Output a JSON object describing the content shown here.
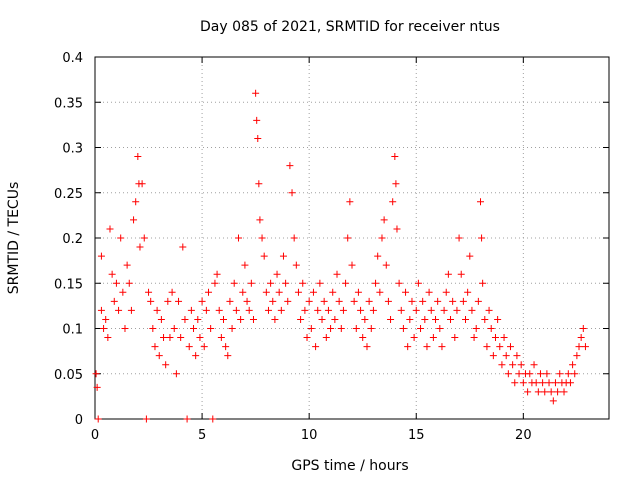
{
  "chart_data": {
    "type": "scatter",
    "title": "Day 085 of 2021, SRMTID for receiver ntus",
    "xlabel": "GPS time / hours",
    "ylabel": "SRMTID / TECUs",
    "xlim": [
      0,
      24
    ],
    "ylim": [
      0,
      0.4
    ],
    "grid": true,
    "marker": "+",
    "color": "#ff0000",
    "x_ticks": [
      0,
      5,
      10,
      15,
      20
    ],
    "x_tick_labels": [
      "0",
      "5",
      "10",
      "15",
      "20"
    ],
    "y_ticks": [
      0,
      0.05,
      0.1,
      0.15,
      0.2,
      0.25,
      0.3,
      0.35,
      0.4
    ],
    "y_tick_labels": [
      "0",
      "0.05",
      "0.1",
      "0.15",
      "0.2",
      "0.25",
      "0.3",
      "0.35",
      "0.4"
    ],
    "series": [
      {
        "name": "SRMTID",
        "points": [
          [
            0.05,
            0.05
          ],
          [
            0.1,
            0.035
          ],
          [
            0.15,
            0.0
          ],
          [
            0.3,
            0.18
          ],
          [
            0.3,
            0.12
          ],
          [
            0.4,
            0.1
          ],
          [
            0.5,
            0.11
          ],
          [
            0.6,
            0.09
          ],
          [
            0.7,
            0.21
          ],
          [
            0.8,
            0.16
          ],
          [
            0.9,
            0.13
          ],
          [
            1.0,
            0.15
          ],
          [
            1.1,
            0.12
          ],
          [
            1.2,
            0.2
          ],
          [
            1.3,
            0.14
          ],
          [
            1.4,
            0.1
          ],
          [
            1.5,
            0.17
          ],
          [
            1.6,
            0.15
          ],
          [
            1.7,
            0.12
          ],
          [
            1.8,
            0.22
          ],
          [
            1.9,
            0.24
          ],
          [
            2.0,
            0.29
          ],
          [
            2.05,
            0.26
          ],
          [
            2.1,
            0.19
          ],
          [
            2.2,
            0.26
          ],
          [
            2.3,
            0.2
          ],
          [
            2.4,
            0.0
          ],
          [
            2.5,
            0.14
          ],
          [
            2.6,
            0.13
          ],
          [
            2.7,
            0.1
          ],
          [
            2.8,
            0.08
          ],
          [
            2.9,
            0.12
          ],
          [
            3.0,
            0.07
          ],
          [
            3.1,
            0.11
          ],
          [
            3.2,
            0.09
          ],
          [
            3.3,
            0.06
          ],
          [
            3.4,
            0.13
          ],
          [
            3.5,
            0.09
          ],
          [
            3.6,
            0.14
          ],
          [
            3.7,
            0.1
          ],
          [
            3.8,
            0.05
          ],
          [
            3.9,
            0.13
          ],
          [
            4.0,
            0.09
          ],
          [
            4.1,
            0.19
          ],
          [
            4.2,
            0.11
          ],
          [
            4.3,
            0.0
          ],
          [
            4.4,
            0.08
          ],
          [
            4.5,
            0.12
          ],
          [
            4.6,
            0.1
          ],
          [
            4.7,
            0.07
          ],
          [
            4.8,
            0.11
          ],
          [
            4.9,
            0.09
          ],
          [
            5.0,
            0.13
          ],
          [
            5.1,
            0.08
          ],
          [
            5.2,
            0.12
          ],
          [
            5.3,
            0.14
          ],
          [
            5.4,
            0.1
          ],
          [
            5.5,
            0.0
          ],
          [
            5.6,
            0.15
          ],
          [
            5.7,
            0.16
          ],
          [
            5.8,
            0.12
          ],
          [
            5.9,
            0.09
          ],
          [
            6.0,
            0.11
          ],
          [
            6.1,
            0.08
          ],
          [
            6.2,
            0.07
          ],
          [
            6.3,
            0.13
          ],
          [
            6.4,
            0.1
          ],
          [
            6.5,
            0.15
          ],
          [
            6.6,
            0.12
          ],
          [
            6.7,
            0.2
          ],
          [
            6.8,
            0.11
          ],
          [
            6.9,
            0.14
          ],
          [
            7.0,
            0.17
          ],
          [
            7.1,
            0.13
          ],
          [
            7.2,
            0.12
          ],
          [
            7.3,
            0.15
          ],
          [
            7.4,
            0.11
          ],
          [
            7.5,
            0.36
          ],
          [
            7.55,
            0.33
          ],
          [
            7.6,
            0.31
          ],
          [
            7.65,
            0.26
          ],
          [
            7.7,
            0.22
          ],
          [
            7.8,
            0.2
          ],
          [
            7.9,
            0.18
          ],
          [
            8.0,
            0.14
          ],
          [
            8.1,
            0.12
          ],
          [
            8.2,
            0.15
          ],
          [
            8.3,
            0.13
          ],
          [
            8.4,
            0.11
          ],
          [
            8.5,
            0.16
          ],
          [
            8.6,
            0.14
          ],
          [
            8.7,
            0.12
          ],
          [
            8.8,
            0.18
          ],
          [
            8.9,
            0.15
          ],
          [
            9.0,
            0.13
          ],
          [
            9.1,
            0.28
          ],
          [
            9.2,
            0.25
          ],
          [
            9.3,
            0.2
          ],
          [
            9.4,
            0.17
          ],
          [
            9.5,
            0.14
          ],
          [
            9.6,
            0.11
          ],
          [
            9.7,
            0.15
          ],
          [
            9.8,
            0.12
          ],
          [
            9.9,
            0.09
          ],
          [
            10.0,
            0.13
          ],
          [
            10.1,
            0.1
          ],
          [
            10.2,
            0.14
          ],
          [
            10.3,
            0.08
          ],
          [
            10.4,
            0.12
          ],
          [
            10.5,
            0.15
          ],
          [
            10.6,
            0.11
          ],
          [
            10.7,
            0.13
          ],
          [
            10.8,
            0.09
          ],
          [
            10.9,
            0.12
          ],
          [
            11.0,
            0.1
          ],
          [
            11.1,
            0.14
          ],
          [
            11.2,
            0.11
          ],
          [
            11.3,
            0.16
          ],
          [
            11.4,
            0.13
          ],
          [
            11.5,
            0.1
          ],
          [
            11.6,
            0.12
          ],
          [
            11.7,
            0.15
          ],
          [
            11.8,
            0.2
          ],
          [
            11.9,
            0.24
          ],
          [
            12.0,
            0.17
          ],
          [
            12.1,
            0.13
          ],
          [
            12.2,
            0.1
          ],
          [
            12.3,
            0.14
          ],
          [
            12.4,
            0.12
          ],
          [
            12.5,
            0.09
          ],
          [
            12.6,
            0.11
          ],
          [
            12.7,
            0.08
          ],
          [
            12.8,
            0.13
          ],
          [
            12.9,
            0.1
          ],
          [
            13.0,
            0.12
          ],
          [
            13.1,
            0.15
          ],
          [
            13.2,
            0.18
          ],
          [
            13.3,
            0.14
          ],
          [
            13.4,
            0.2
          ],
          [
            13.5,
            0.22
          ],
          [
            13.6,
            0.17
          ],
          [
            13.7,
            0.13
          ],
          [
            13.8,
            0.11
          ],
          [
            13.9,
            0.24
          ],
          [
            14.0,
            0.29
          ],
          [
            14.05,
            0.26
          ],
          [
            14.1,
            0.21
          ],
          [
            14.2,
            0.15
          ],
          [
            14.3,
            0.12
          ],
          [
            14.4,
            0.1
          ],
          [
            14.5,
            0.14
          ],
          [
            14.6,
            0.08
          ],
          [
            14.7,
            0.11
          ],
          [
            14.8,
            0.13
          ],
          [
            14.9,
            0.09
          ],
          [
            15.0,
            0.12
          ],
          [
            15.1,
            0.15
          ],
          [
            15.2,
            0.1
          ],
          [
            15.3,
            0.13
          ],
          [
            15.4,
            0.11
          ],
          [
            15.5,
            0.08
          ],
          [
            15.6,
            0.14
          ],
          [
            15.7,
            0.12
          ],
          [
            15.8,
            0.09
          ],
          [
            15.9,
            0.11
          ],
          [
            16.0,
            0.13
          ],
          [
            16.1,
            0.1
          ],
          [
            16.2,
            0.08
          ],
          [
            16.3,
            0.12
          ],
          [
            16.4,
            0.14
          ],
          [
            16.5,
            0.16
          ],
          [
            16.6,
            0.11
          ],
          [
            16.7,
            0.13
          ],
          [
            16.8,
            0.09
          ],
          [
            16.9,
            0.12
          ],
          [
            17.0,
            0.2
          ],
          [
            17.1,
            0.16
          ],
          [
            17.2,
            0.13
          ],
          [
            17.3,
            0.11
          ],
          [
            17.4,
            0.14
          ],
          [
            17.5,
            0.18
          ],
          [
            17.6,
            0.12
          ],
          [
            17.7,
            0.09
          ],
          [
            17.8,
            0.1
          ],
          [
            17.9,
            0.13
          ],
          [
            18.0,
            0.24
          ],
          [
            18.05,
            0.2
          ],
          [
            18.1,
            0.15
          ],
          [
            18.2,
            0.11
          ],
          [
            18.3,
            0.08
          ],
          [
            18.4,
            0.12
          ],
          [
            18.5,
            0.1
          ],
          [
            18.6,
            0.07
          ],
          [
            18.7,
            0.09
          ],
          [
            18.8,
            0.11
          ],
          [
            18.9,
            0.08
          ],
          [
            19.0,
            0.06
          ],
          [
            19.1,
            0.09
          ],
          [
            19.2,
            0.07
          ],
          [
            19.3,
            0.05
          ],
          [
            19.4,
            0.08
          ],
          [
            19.5,
            0.06
          ],
          [
            19.6,
            0.04
          ],
          [
            19.7,
            0.07
          ],
          [
            19.8,
            0.05
          ],
          [
            19.9,
            0.06
          ],
          [
            20.0,
            0.04
          ],
          [
            20.1,
            0.05
          ],
          [
            20.2,
            0.03
          ],
          [
            20.3,
            0.05
          ],
          [
            20.4,
            0.04
          ],
          [
            20.5,
            0.06
          ],
          [
            20.6,
            0.04
          ],
          [
            20.7,
            0.03
          ],
          [
            20.8,
            0.05
          ],
          [
            20.9,
            0.04
          ],
          [
            21.0,
            0.03
          ],
          [
            21.1,
            0.05
          ],
          [
            21.2,
            0.04
          ],
          [
            21.3,
            0.03
          ],
          [
            21.4,
            0.02
          ],
          [
            21.5,
            0.04
          ],
          [
            21.6,
            0.03
          ],
          [
            21.7,
            0.05
          ],
          [
            21.8,
            0.04
          ],
          [
            21.9,
            0.03
          ],
          [
            22.0,
            0.04
          ],
          [
            22.1,
            0.05
          ],
          [
            22.2,
            0.04
          ],
          [
            22.3,
            0.06
          ],
          [
            22.4,
            0.05
          ],
          [
            22.5,
            0.07
          ],
          [
            22.6,
            0.08
          ],
          [
            22.7,
            0.09
          ],
          [
            22.8,
            0.1
          ],
          [
            22.9,
            0.08
          ]
        ]
      }
    ]
  }
}
